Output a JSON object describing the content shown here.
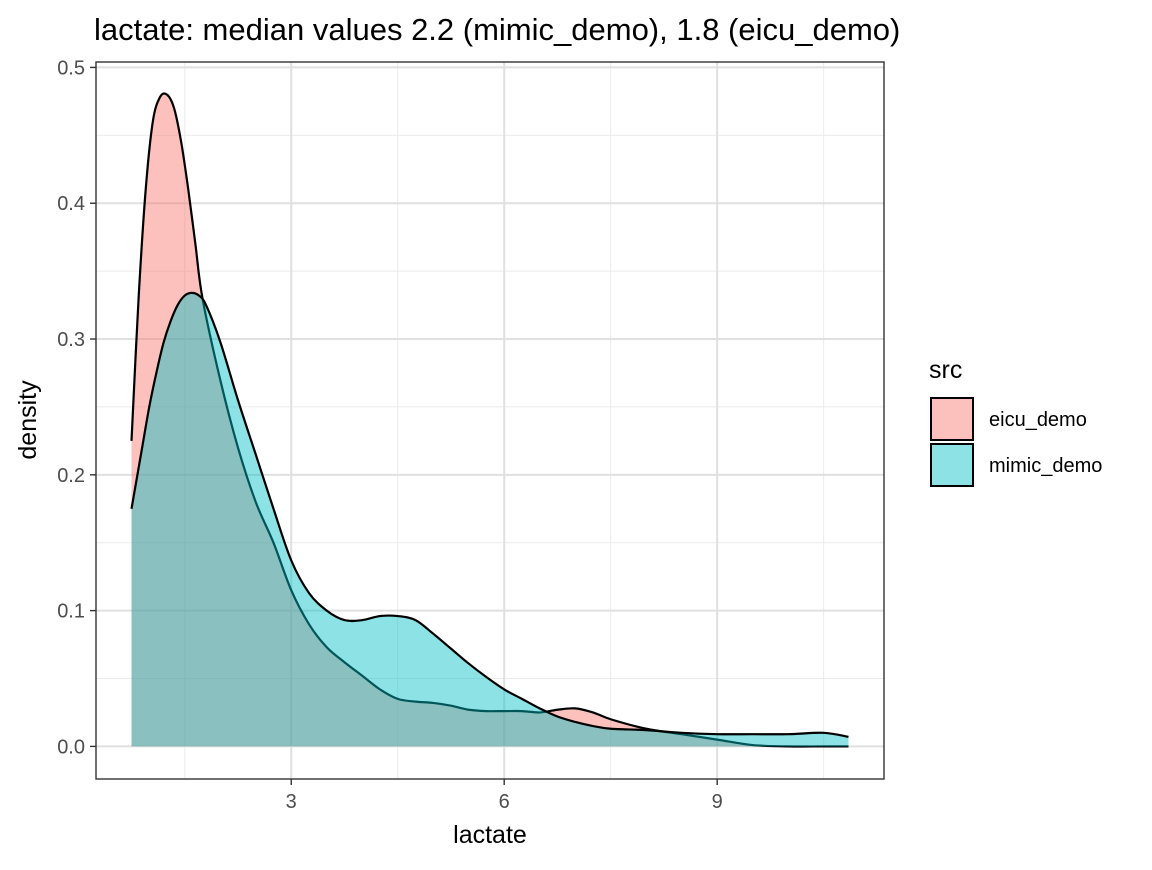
{
  "chart_data": {
    "type": "area",
    "title": "lactate: median values 2.2 (mimic_demo), 1.8 (eicu_demo)",
    "xlabel": "lactate",
    "ylabel": "density",
    "xlim": [
      0.25,
      11.35
    ],
    "ylim": [
      -0.024,
      0.504
    ],
    "x_ticks": [
      3,
      6,
      9
    ],
    "y_ticks": [
      0.0,
      0.1,
      0.2,
      0.3,
      0.4,
      0.5
    ],
    "y_tick_labels": [
      "0.0",
      "0.1",
      "0.2",
      "0.3",
      "0.4",
      "0.5"
    ],
    "grid": true,
    "legend": {
      "title": "src",
      "position": "right"
    },
    "series": [
      {
        "name": "eicu_demo",
        "fill": "#F8766D",
        "x": [
          0.75,
          0.85,
          0.95,
          1.05,
          1.15,
          1.25,
          1.35,
          1.45,
          1.55,
          1.65,
          1.75,
          2.0,
          2.25,
          2.5,
          2.75,
          3.0,
          3.25,
          3.5,
          3.75,
          4.0,
          4.25,
          4.5,
          4.75,
          5.0,
          5.25,
          5.5,
          5.75,
          6.0,
          6.25,
          6.5,
          6.75,
          7.0,
          7.25,
          7.5,
          8.0,
          8.5,
          9.0,
          9.5,
          10.0,
          10.5,
          10.85
        ],
        "values": [
          0.225,
          0.33,
          0.41,
          0.46,
          0.478,
          0.48,
          0.47,
          0.445,
          0.41,
          0.37,
          0.33,
          0.27,
          0.22,
          0.18,
          0.15,
          0.115,
          0.09,
          0.073,
          0.062,
          0.052,
          0.042,
          0.035,
          0.033,
          0.032,
          0.03,
          0.027,
          0.026,
          0.026,
          0.026,
          0.025,
          0.027,
          0.028,
          0.025,
          0.02,
          0.013,
          0.009,
          0.005,
          0.001,
          0.0,
          0.0,
          0.0
        ]
      },
      {
        "name": "mimic_demo",
        "fill": "#00BFC4",
        "x": [
          0.75,
          0.9,
          1.0,
          1.1,
          1.2,
          1.3,
          1.4,
          1.5,
          1.6,
          1.7,
          1.8,
          2.0,
          2.25,
          2.5,
          2.75,
          3.0,
          3.25,
          3.5,
          3.75,
          4.0,
          4.25,
          4.5,
          4.75,
          5.0,
          5.25,
          5.5,
          5.75,
          6.0,
          6.25,
          6.5,
          6.75,
          7.0,
          7.25,
          7.5,
          8.0,
          8.5,
          9.0,
          9.5,
          10.0,
          10.5,
          10.85
        ],
        "values": [
          0.175,
          0.22,
          0.25,
          0.275,
          0.297,
          0.313,
          0.325,
          0.332,
          0.334,
          0.332,
          0.325,
          0.298,
          0.255,
          0.215,
          0.175,
          0.137,
          0.113,
          0.1,
          0.093,
          0.093,
          0.096,
          0.096,
          0.093,
          0.083,
          0.072,
          0.061,
          0.051,
          0.042,
          0.035,
          0.028,
          0.022,
          0.018,
          0.015,
          0.013,
          0.012,
          0.01,
          0.009,
          0.009,
          0.009,
          0.01,
          0.007
        ]
      }
    ]
  }
}
